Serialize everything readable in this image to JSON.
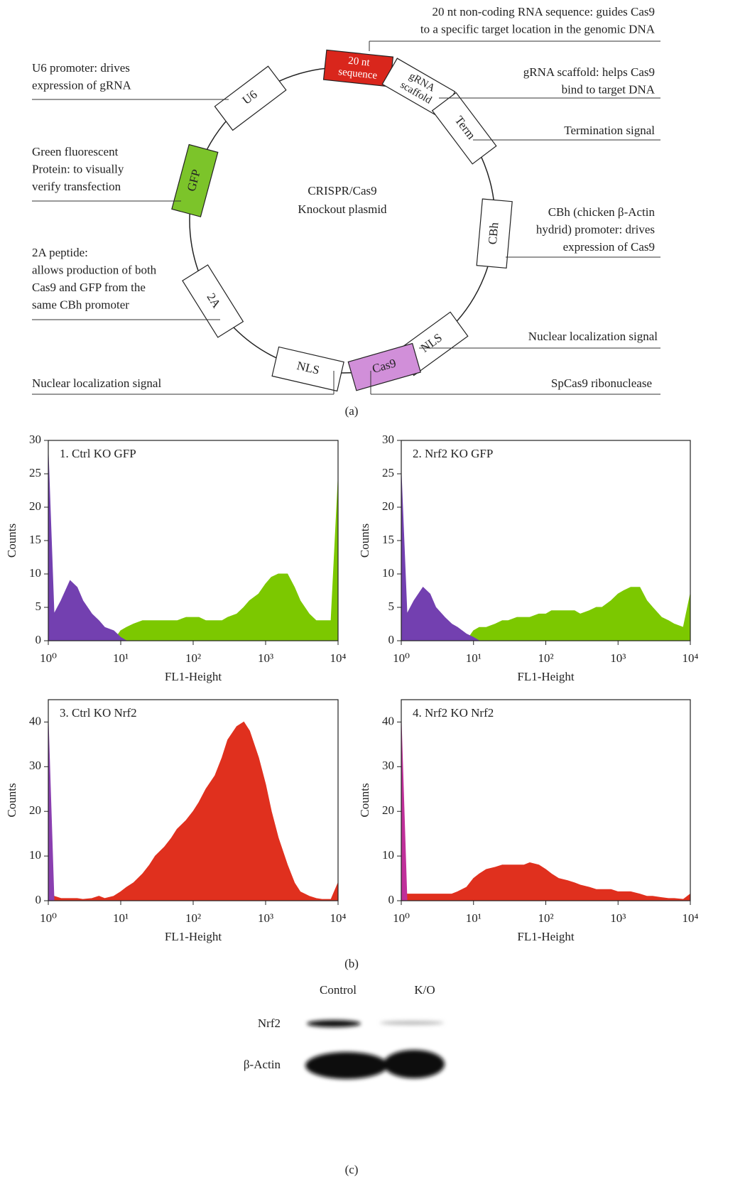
{
  "diagram": {
    "center_label": [
      "CRISPR/Cas9",
      "Knockout plasmid"
    ],
    "elements": [
      {
        "label": [
          "20 nt",
          "sequence"
        ],
        "color": "#d9261c"
      },
      {
        "label": [
          "gRNA",
          "scaffold"
        ],
        "color": "#ffffff"
      },
      {
        "label": [
          "Term"
        ],
        "color": "#ffffff"
      },
      {
        "label": [
          "CBh"
        ],
        "color": "#ffffff"
      },
      {
        "label": [
          "NLS"
        ],
        "color": "#ffffff"
      },
      {
        "label": [
          "Cas9"
        ],
        "color": "#d18fd9"
      },
      {
        "label": [
          "NLS"
        ],
        "color": "#ffffff"
      },
      {
        "label": [
          "2A"
        ],
        "color": "#ffffff"
      },
      {
        "label": [
          "GFP"
        ],
        "color": "#7cc42a"
      },
      {
        "label": [
          "U6"
        ],
        "color": "#ffffff"
      }
    ],
    "annotations": [
      {
        "lines": [
          "20 nt non-coding RNA sequence: guides Cas9",
          "to a specific target location in the genomic DNA"
        ]
      },
      {
        "lines": [
          "gRNA scaffold: helps Cas9",
          "bind to target DNA"
        ]
      },
      {
        "lines": [
          "Termination signal"
        ]
      },
      {
        "lines": [
          "CBh (chicken β-Actin",
          "hydrid) promoter: drives",
          "expression of Cas9"
        ]
      },
      {
        "lines": [
          "Nuclear localization signal"
        ]
      },
      {
        "lines": [
          "SpCas9 ribonuclease"
        ]
      },
      {
        "lines": [
          "Nuclear localization signal"
        ]
      },
      {
        "lines": [
          "2A peptide:",
          "allows production of both",
          "Cas9 and GFP from the",
          "same CBh promoter"
        ]
      },
      {
        "lines": [
          "Green fluorescent",
          "Protein: to visually",
          "verify transfection"
        ]
      },
      {
        "lines": [
          "U6 promoter: drives",
          "expression of gRNA"
        ]
      }
    ],
    "caption": "(a)"
  },
  "chart_data": [
    {
      "type": "area",
      "title": "1. Ctrl KO GFP",
      "x_label": "FL1-Height",
      "y_label": "Counts",
      "log_x": true,
      "x": [
        1,
        1.2,
        1.5,
        2,
        2.5,
        3,
        4,
        5,
        6,
        8,
        10,
        12,
        15,
        20,
        25,
        30,
        40,
        50,
        60,
        80,
        100,
        120,
        150,
        200,
        250,
        300,
        400,
        500,
        600,
        800,
        1000,
        1200,
        1500,
        2000,
        2500,
        3000,
        4000,
        5000,
        6000,
        8000,
        10000
      ],
      "series": [
        {
          "color": "#7cc800",
          "values": [
            0,
            0,
            0,
            0,
            0,
            0,
            0,
            0,
            0,
            0,
            1.5,
            2,
            2.5,
            3,
            3,
            3,
            3,
            3,
            3,
            3.5,
            3.5,
            3.5,
            3,
            3,
            3,
            3.5,
            4,
            5,
            6,
            7,
            8.5,
            9.5,
            10,
            10,
            8,
            6,
            4,
            3,
            3,
            3,
            24
          ]
        },
        {
          "color": "#7340b0",
          "values": [
            28,
            4,
            6,
            9,
            8,
            6,
            4,
            3,
            2,
            1.5,
            0.5,
            0,
            0,
            0,
            0,
            0,
            0,
            0,
            0,
            0,
            0,
            0,
            0,
            0,
            0,
            0,
            0,
            0,
            0,
            0,
            0,
            0,
            0,
            0,
            0,
            0,
            0,
            0,
            0,
            0,
            0
          ]
        }
      ],
      "xlim": [
        1,
        10000
      ],
      "xticks": [
        {
          "value": 1,
          "label": "10⁰"
        },
        {
          "value": 10,
          "label": "10¹"
        },
        {
          "value": 100,
          "label": "10²"
        },
        {
          "value": 1000,
          "label": "10³"
        },
        {
          "value": 10000,
          "label": "10⁴"
        }
      ],
      "ylim": [
        0,
        30
      ],
      "yticks": [
        0,
        5,
        10,
        15,
        20,
        25,
        30
      ]
    },
    {
      "type": "area",
      "title": "2. Nrf2 KO GFP",
      "x_label": "FL1-Height",
      "y_label": "Counts",
      "log_x": true,
      "x": [
        1,
        1.2,
        1.5,
        2,
        2.5,
        3,
        4,
        5,
        6,
        8,
        10,
        12,
        15,
        20,
        25,
        30,
        40,
        50,
        60,
        80,
        100,
        120,
        150,
        200,
        250,
        300,
        400,
        500,
        600,
        800,
        1000,
        1200,
        1500,
        2000,
        2500,
        3000,
        4000,
        5000,
        6000,
        8000,
        10000
      ],
      "series": [
        {
          "color": "#7cc800",
          "values": [
            0,
            0,
            0,
            0,
            0,
            0,
            0,
            0,
            0,
            0,
            1.5,
            2,
            2,
            2.5,
            3,
            3,
            3.5,
            3.5,
            3.5,
            4,
            4,
            4.5,
            4.5,
            4.5,
            4.5,
            4,
            4.5,
            5,
            5,
            6,
            7,
            7.5,
            8,
            8,
            6,
            5,
            3.5,
            3,
            2.5,
            2,
            7
          ]
        },
        {
          "color": "#7340b0",
          "values": [
            25,
            4,
            6,
            8,
            7,
            5,
            3.5,
            2.5,
            2,
            1,
            0.5,
            0,
            0,
            0,
            0,
            0,
            0,
            0,
            0,
            0,
            0,
            0,
            0,
            0,
            0,
            0,
            0,
            0,
            0,
            0,
            0,
            0,
            0,
            0,
            0,
            0,
            0,
            0,
            0,
            0,
            0
          ]
        }
      ],
      "xlim": [
        1,
        10000
      ],
      "xticks": [
        {
          "value": 1,
          "label": "10⁰"
        },
        {
          "value": 10,
          "label": "10¹"
        },
        {
          "value": 100,
          "label": "10²"
        },
        {
          "value": 1000,
          "label": "10³"
        },
        {
          "value": 10000,
          "label": "10⁴"
        }
      ],
      "ylim": [
        0,
        30
      ],
      "yticks": [
        0,
        5,
        10,
        15,
        20,
        25,
        30
      ]
    },
    {
      "type": "area",
      "title": "3. Ctrl KO Nrf2",
      "x_label": "FL1-Height",
      "y_label": "Counts",
      "log_x": true,
      "x": [
        1,
        1.2,
        1.5,
        2,
        2.5,
        3,
        4,
        5,
        6,
        8,
        10,
        12,
        15,
        20,
        25,
        30,
        40,
        50,
        60,
        80,
        100,
        120,
        150,
        200,
        250,
        300,
        400,
        500,
        600,
        800,
        1000,
        1200,
        1500,
        2000,
        2500,
        3000,
        4000,
        5000,
        6000,
        8000,
        10000
      ],
      "series": [
        {
          "color": "#e0301e",
          "values": [
            0,
            1,
            0.5,
            0.5,
            0.5,
            0.3,
            0.5,
            1,
            0.5,
            1,
            2,
            3,
            4,
            6,
            8,
            10,
            12,
            14,
            16,
            18,
            20,
            22,
            25,
            28,
            32,
            36,
            39,
            40,
            38,
            32,
            26,
            20,
            14,
            8,
            4,
            2,
            1,
            0.5,
            0.3,
            0.3,
            4
          ]
        },
        {
          "color": "#8a3fb0",
          "values": [
            40,
            0,
            0,
            0,
            0,
            0,
            0,
            0,
            0,
            0,
            0,
            0,
            0,
            0,
            0,
            0,
            0,
            0,
            0,
            0,
            0,
            0,
            0,
            0,
            0,
            0,
            0,
            0,
            0,
            0,
            0,
            0,
            0,
            0,
            0,
            0,
            0,
            0,
            0,
            0,
            0
          ]
        }
      ],
      "xlim": [
        1,
        10000
      ],
      "xticks": [
        {
          "value": 1,
          "label": "10⁰"
        },
        {
          "value": 10,
          "label": "10¹"
        },
        {
          "value": 100,
          "label": "10²"
        },
        {
          "value": 1000,
          "label": "10³"
        },
        {
          "value": 10000,
          "label": "10⁴"
        }
      ],
      "ylim": [
        0,
        45
      ],
      "yticks": [
        0,
        10,
        20,
        30,
        40
      ]
    },
    {
      "type": "area",
      "title": "4. Nrf2 KO Nrf2",
      "x_label": "FL1-Height",
      "y_label": "Counts",
      "log_x": true,
      "x": [
        1,
        1.2,
        1.5,
        2,
        2.5,
        3,
        4,
        5,
        6,
        8,
        10,
        12,
        15,
        20,
        25,
        30,
        40,
        50,
        60,
        80,
        100,
        120,
        150,
        200,
        250,
        300,
        400,
        500,
        600,
        800,
        1000,
        1200,
        1500,
        2000,
        2500,
        3000,
        4000,
        5000,
        6000,
        8000,
        10000
      ],
      "series": [
        {
          "color": "#e0301e",
          "values": [
            0,
            1.5,
            1.5,
            1.5,
            1.5,
            1.5,
            1.5,
            1.5,
            2,
            3,
            5,
            6,
            7,
            7.5,
            8,
            8,
            8,
            8,
            8.5,
            8,
            7,
            6,
            5,
            4.5,
            4,
            3.5,
            3,
            2.5,
            2.5,
            2.5,
            2,
            2,
            2,
            1.5,
            1,
            1,
            0.7,
            0.5,
            0.5,
            0.3,
            1.5
          ]
        },
        {
          "color": "#c0309a",
          "values": [
            40,
            0,
            0,
            0,
            0,
            0,
            0,
            0,
            0,
            0,
            0,
            0,
            0,
            0,
            0,
            0,
            0,
            0,
            0,
            0,
            0,
            0,
            0,
            0,
            0,
            0,
            0,
            0,
            0,
            0,
            0,
            0,
            0,
            0,
            0,
            0,
            0,
            0,
            0,
            0,
            0
          ]
        }
      ],
      "xlim": [
        1,
        10000
      ],
      "xticks": [
        {
          "value": 1,
          "label": "10⁰"
        },
        {
          "value": 10,
          "label": "10¹"
        },
        {
          "value": 100,
          "label": "10²"
        },
        {
          "value": 1000,
          "label": "10³"
        },
        {
          "value": 10000,
          "label": "10⁴"
        }
      ],
      "ylim": [
        0,
        45
      ],
      "yticks": [
        0,
        10,
        20,
        30,
        40
      ]
    }
  ],
  "histogram_caption": "(b)",
  "blot": {
    "columns": [
      "Control",
      "K/O"
    ],
    "rows": [
      "Nrf2",
      "β-Actin"
    ],
    "caption": "(c)"
  }
}
